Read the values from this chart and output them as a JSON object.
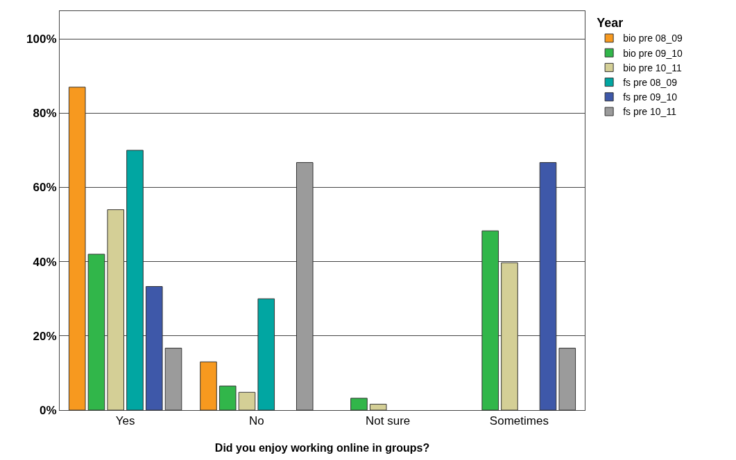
{
  "chart_data": {
    "type": "bar",
    "xlabel": "Did you enjoy working online in groups?",
    "legend_title": "Year",
    "categories": [
      "Yes",
      "No",
      "Not sure",
      "Sometimes"
    ],
    "series": [
      {
        "name": "bio pre 08_09",
        "color": "#f7991f",
        "values": [
          87,
          13,
          null,
          null
        ]
      },
      {
        "name": "bio pre 09_10",
        "color": "#31b64a",
        "values": [
          42,
          6.5,
          3.2,
          48.3
        ]
      },
      {
        "name": "bio pre 10_11",
        "color": "#d4cf96",
        "values": [
          54,
          4.8,
          1.6,
          39.7
        ]
      },
      {
        "name": "fs pre 08_09",
        "color": "#01a6a2",
        "values": [
          70,
          30,
          null,
          null
        ]
      },
      {
        "name": "fs pre 09_10",
        "color": "#3e58a9",
        "values": [
          33.3,
          null,
          null,
          66.7
        ]
      },
      {
        "name": "fs pre 10_11",
        "color": "#9b9b9b",
        "values": [
          16.7,
          66.7,
          null,
          16.7
        ]
      }
    ],
    "ylim": [
      0,
      107.5
    ],
    "yticks": [
      {
        "value": 0,
        "label": "0%"
      },
      {
        "value": 20,
        "label": "20%"
      },
      {
        "value": 40,
        "label": "40%"
      },
      {
        "value": 60,
        "label": "60%"
      },
      {
        "value": 80,
        "label": "80%"
      },
      {
        "value": 100,
        "label": "100%"
      }
    ],
    "grid": "y",
    "legend": "top right"
  }
}
